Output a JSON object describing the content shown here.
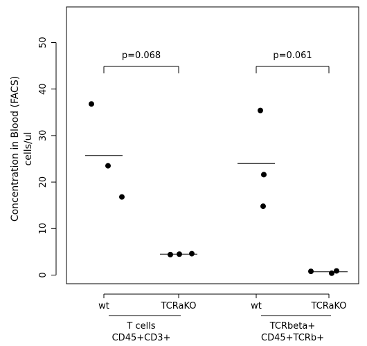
{
  "chart_data": {
    "type": "scatter",
    "ylabel": "Concentration in Blood (FACS)",
    "ylabel_unit": "cells/ul",
    "ylim": [
      0,
      55
    ],
    "yticks": [
      0,
      10,
      20,
      30,
      40,
      50
    ],
    "xticks": [
      "wt",
      "TCRaKO",
      "wt",
      "TCRaKO"
    ],
    "groups": [
      {
        "label_line1": "T cells",
        "label_line2": "CD45+CD3+",
        "pvalue": "p=0.068",
        "conditions": [
          {
            "name": "wt",
            "points": [
              36.8,
              23.5,
              16.8
            ],
            "mean": 25.7
          },
          {
            "name": "TCRaKO",
            "points": [
              4.4,
              4.5,
              4.6
            ],
            "mean": 4.5
          }
        ]
      },
      {
        "label_line1": "TCRbeta+",
        "label_line2": "CD45+TCRb+",
        "pvalue": "p=0.061",
        "conditions": [
          {
            "name": "wt",
            "points": [
              35.4,
              21.6,
              14.8
            ],
            "mean": 24.0
          },
          {
            "name": "TCRaKO",
            "points": [
              0.8,
              0.4,
              0.9
            ],
            "mean": 0.7
          }
        ]
      }
    ],
    "grid": false,
    "legend": "none"
  }
}
